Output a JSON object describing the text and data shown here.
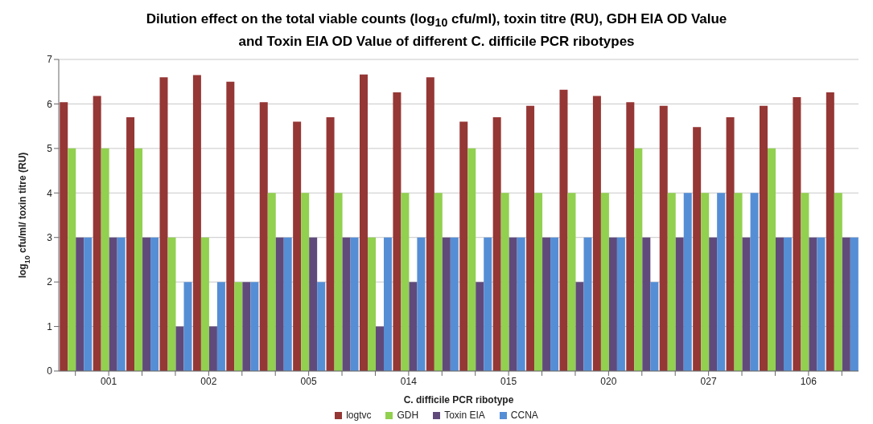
{
  "chart_data": {
    "type": "bar",
    "title": "Dilution effect on the total viable counts (log$_{10}$ cfu/ml), toxin titre (RU), GDH EIA OD Value and Toxin EIA OD Value of different C. difficile PCR ribotypes",
    "xlabel": "C. difficile PCR ribotype",
    "ylabel": "log$_{10}$ cfu/ml/ toxin titre (RU)",
    "categories": [
      null,
      "001",
      null,
      null,
      "002",
      null,
      null,
      "005",
      null,
      null,
      "014",
      null,
      null,
      "015",
      null,
      null,
      "020",
      null,
      null,
      "027",
      null,
      null,
      "106",
      null
    ],
    "series": [
      {
        "name": "logtvc",
        "color": "#953735",
        "values": [
          6.04,
          6.18,
          5.7,
          6.6,
          6.65,
          6.5,
          6.04,
          5.6,
          5.7,
          6.66,
          6.26,
          6.6,
          5.6,
          5.7,
          5.96,
          6.32,
          6.18,
          6.04,
          5.96,
          5.48,
          5.7,
          5.96,
          6.15,
          6.26
        ]
      },
      {
        "name": "GDH",
        "color": "#92d050",
        "values": [
          5,
          5,
          5,
          3,
          3,
          2,
          4,
          4,
          4,
          3,
          4,
          4,
          5,
          4,
          4,
          4,
          4,
          5,
          4,
          4,
          4,
          5,
          4,
          4
        ]
      },
      {
        "name": "Toxin EIA",
        "color": "#604a7b",
        "values": [
          3,
          3,
          3,
          1,
          1,
          2,
          3,
          3,
          3,
          1,
          2,
          3,
          2,
          3,
          3,
          2,
          3,
          3,
          3,
          3,
          3,
          3,
          3,
          3
        ]
      },
      {
        "name": "CCNA",
        "color": "#558ed5",
        "values": [
          3,
          3,
          3,
          2,
          2,
          2,
          3,
          2,
          3,
          3,
          3,
          3,
          3,
          3,
          3,
          3,
          3,
          2,
          4,
          4,
          4,
          3,
          3,
          3
        ]
      }
    ],
    "ylim": [
      0,
      7
    ],
    "yticks": [
      0,
      1,
      2,
      3,
      4,
      5,
      6,
      7
    ],
    "grid": "y",
    "legend": "bottom"
  }
}
